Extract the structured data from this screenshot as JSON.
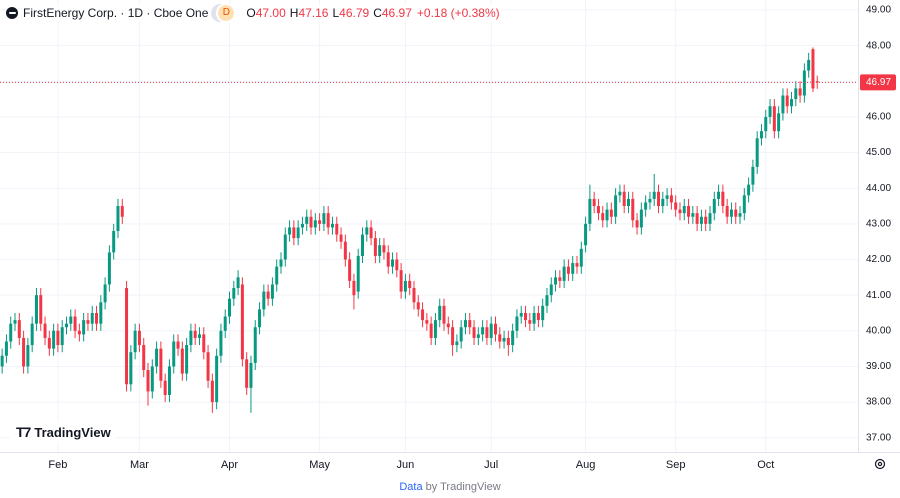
{
  "header": {
    "symbol": "FirstEnergy Corp. · 1D · Cboe One",
    "badge": "D",
    "legend": [
      {
        "key": "O",
        "value": "47.00"
      },
      {
        "key": "H",
        "value": "47.16"
      },
      {
        "key": "L",
        "value": "46.79"
      },
      {
        "key": "C",
        "value": "46.97"
      }
    ],
    "change": "+0.18 (+0.38%)"
  },
  "logo": "TradingView",
  "footer": {
    "link": "Data",
    "text": "by TradingView"
  },
  "chart_data": {
    "type": "candlestick",
    "up_color": "#089981",
    "down_color": "#f23645",
    "grid": true,
    "xlim": [
      -0.5,
      199.5
    ],
    "ylim": [
      36.6,
      49.28
    ],
    "yticks": [
      {
        "value": 37,
        "label": "37.00"
      },
      {
        "value": 38,
        "label": "38.00"
      },
      {
        "value": 39,
        "label": "39.00"
      },
      {
        "value": 40,
        "label": "40.00"
      },
      {
        "value": 41,
        "label": "41.00"
      },
      {
        "value": 42,
        "label": "42.00"
      },
      {
        "value": 43,
        "label": "43.00"
      },
      {
        "value": 44,
        "label": "44.00"
      },
      {
        "value": 45,
        "label": "45.00"
      },
      {
        "value": 46,
        "label": "46.00"
      },
      {
        "value": 47,
        "label": "47.00"
      },
      {
        "value": 48,
        "label": "48.00"
      },
      {
        "value": 49,
        "label": "49.00"
      }
    ],
    "xticks": [
      {
        "value": 13,
        "label": "Feb"
      },
      {
        "value": 32,
        "label": "Mar"
      },
      {
        "value": 53,
        "label": "Apr"
      },
      {
        "value": 74,
        "label": "May"
      },
      {
        "value": 94,
        "label": "Jun"
      },
      {
        "value": 114,
        "label": "Jul"
      },
      {
        "value": 136,
        "label": "Aug"
      },
      {
        "value": 157,
        "label": "Sep"
      },
      {
        "value": 178,
        "label": "Oct"
      }
    ],
    "last_price": 46.97,
    "open": [
      39.0,
      39.3,
      39.7,
      40.2,
      40.3,
      39.8,
      39.0,
      39.6,
      40.2,
      41.0,
      40.2,
      39.8,
      39.5,
      40.0,
      39.6,
      40.1,
      40.2,
      40.4,
      40.0,
      39.9,
      40.3,
      40.2,
      40.5,
      40.2,
      40.8,
      41.3,
      42.2,
      42.8,
      43.5,
      41.2,
      38.5,
      39.4,
      40.0,
      39.6,
      38.9,
      38.3,
      39.0,
      39.5,
      38.6,
      38.2,
      39.0,
      39.7,
      39.5,
      38.8,
      39.6,
      40.0,
      39.8,
      39.9,
      39.4,
      38.6,
      38.0,
      39.3,
      40.0,
      40.4,
      40.9,
      41.2,
      41.3,
      39.2,
      38.4,
      39.1,
      40.1,
      40.6,
      41.1,
      40.9,
      41.3,
      41.8,
      42.0,
      42.7,
      42.9,
      42.6,
      42.9,
      43.0,
      43.2,
      42.9,
      43.1,
      43.0,
      43.3,
      42.9,
      43.0,
      42.7,
      42.5,
      42.0,
      41.4,
      41.1,
      42.1,
      42.7,
      42.9,
      42.6,
      42.1,
      42.4,
      42.2,
      41.8,
      42.0,
      41.7,
      41.1,
      41.4,
      41.2,
      40.8,
      40.6,
      40.3,
      40.2,
      39.8,
      40.3,
      40.7,
      40.2,
      40.1,
      39.6,
      39.7,
      40.1,
      40.3,
      40.1,
      39.8,
      39.9,
      40.1,
      39.8,
      40.2,
      39.9,
      39.7,
      39.8,
      39.6,
      40.0,
      40.4,
      40.5,
      40.3,
      40.2,
      40.5,
      40.3,
      40.7,
      41.0,
      41.3,
      41.5,
      41.4,
      41.8,
      41.6,
      41.9,
      41.8,
      42.4,
      43.0,
      43.7,
      43.5,
      43.3,
      43.1,
      43.4,
      43.2,
      43.8,
      43.9,
      43.5,
      43.7,
      43.1,
      42.9,
      43.4,
      43.6,
      43.7,
      43.9,
      43.5,
      43.7,
      43.8,
      43.6,
      43.4,
      43.3,
      43.5,
      43.2,
      43.3,
      43.0,
      43.2,
      43.0,
      43.3,
      43.7,
      43.9,
      43.5,
      43.2,
      43.4,
      43.2,
      43.3,
      43.8,
      44.1,
      44.6,
      45.4,
      45.6,
      46.0,
      46.3,
      45.6,
      46.1,
      46.6,
      46.3,
      46.5,
      46.8,
      46.6,
      47.3,
      47.9,
      47.0
    ],
    "high": [
      39.5,
      39.9,
      40.4,
      40.5,
      40.5,
      40.0,
      39.8,
      40.4,
      41.2,
      41.2,
      40.4,
      40.0,
      40.2,
      40.2,
      40.3,
      40.4,
      40.6,
      40.6,
      40.2,
      40.5,
      40.5,
      40.7,
      40.7,
      41.0,
      41.5,
      42.4,
      43.0,
      43.7,
      43.7,
      41.4,
      39.6,
      40.2,
      40.2,
      39.8,
      39.1,
      39.2,
      39.7,
      39.7,
      38.8,
      39.2,
      39.9,
      39.9,
      39.7,
      39.8,
      40.2,
      40.2,
      40.1,
      40.1,
      39.6,
      38.8,
      39.5,
      40.2,
      40.6,
      41.1,
      41.4,
      41.7,
      41.5,
      39.4,
      39.3,
      40.3,
      40.8,
      41.3,
      41.3,
      41.5,
      42.0,
      42.2,
      42.9,
      43.1,
      43.1,
      43.1,
      43.2,
      43.4,
      43.4,
      43.3,
      43.3,
      43.5,
      43.5,
      43.2,
      43.2,
      42.9,
      42.7,
      42.2,
      41.6,
      42.3,
      42.9,
      43.1,
      43.1,
      42.8,
      42.6,
      42.6,
      42.4,
      42.2,
      42.2,
      41.9,
      41.6,
      41.6,
      41.4,
      41.0,
      40.8,
      40.5,
      40.4,
      40.5,
      40.9,
      40.9,
      40.4,
      40.3,
      39.9,
      40.3,
      40.5,
      40.5,
      40.3,
      40.1,
      40.3,
      40.3,
      40.4,
      40.4,
      40.1,
      40.0,
      40.0,
      40.2,
      40.6,
      40.7,
      40.7,
      40.5,
      40.7,
      40.7,
      40.9,
      41.2,
      41.5,
      41.7,
      41.7,
      42.0,
      42.0,
      42.1,
      42.1,
      42.5,
      43.2,
      44.1,
      43.9,
      43.7,
      43.5,
      43.6,
      43.6,
      44.0,
      44.1,
      44.1,
      43.9,
      43.9,
      43.3,
      43.6,
      43.8,
      43.9,
      44.4,
      44.1,
      43.9,
      44.0,
      44.0,
      43.8,
      43.6,
      43.7,
      43.7,
      43.5,
      43.5,
      43.4,
      43.4,
      43.5,
      43.9,
      44.1,
      44.1,
      43.7,
      43.6,
      43.6,
      43.5,
      44.0,
      44.3,
      44.8,
      45.6,
      45.8,
      46.2,
      46.5,
      46.5,
      46.3,
      46.8,
      46.8,
      46.7,
      47.0,
      47.0,
      47.5,
      47.8,
      47.95,
      47.16
    ],
    "low": [
      38.8,
      39.1,
      39.5,
      40.0,
      39.6,
      38.8,
      38.8,
      39.4,
      40.0,
      40.0,
      39.6,
      39.3,
      39.3,
      39.4,
      39.4,
      39.9,
      40.0,
      39.8,
      39.7,
      39.7,
      40.0,
      40.0,
      40.0,
      40.0,
      40.6,
      41.1,
      42.0,
      42.6,
      43.0,
      38.3,
      38.3,
      39.2,
      39.4,
      38.7,
      37.9,
      38.1,
      38.8,
      38.4,
      38.0,
      38.0,
      38.8,
      39.3,
      38.6,
      38.6,
      39.4,
      39.6,
      39.6,
      39.2,
      38.4,
      37.7,
      37.8,
      39.1,
      39.8,
      40.2,
      40.7,
      41.0,
      39.0,
      38.2,
      37.7,
      38.9,
      39.9,
      40.4,
      40.7,
      40.7,
      41.1,
      41.6,
      41.8,
      42.5,
      42.4,
      42.4,
      42.7,
      42.8,
      42.7,
      42.7,
      42.8,
      42.8,
      42.7,
      42.7,
      42.5,
      42.3,
      41.8,
      41.2,
      40.6,
      40.9,
      41.9,
      42.5,
      42.4,
      41.9,
      41.9,
      42.0,
      41.6,
      41.6,
      41.5,
      40.9,
      40.9,
      41.0,
      40.6,
      40.4,
      40.1,
      40.0,
      39.6,
      39.6,
      40.1,
      40.0,
      39.9,
      39.3,
      39.4,
      39.5,
      39.9,
      39.9,
      39.6,
      39.6,
      39.7,
      39.6,
      39.6,
      39.7,
      39.5,
      39.5,
      39.3,
      39.4,
      39.8,
      40.2,
      40.1,
      40.0,
      40.0,
      40.1,
      40.1,
      40.5,
      40.8,
      41.1,
      41.2,
      41.2,
      41.4,
      41.4,
      41.6,
      41.6,
      42.2,
      42.8,
      43.3,
      43.1,
      42.9,
      42.9,
      43.0,
      43.0,
      43.6,
      43.3,
      43.3,
      42.9,
      42.7,
      42.7,
      43.2,
      43.4,
      43.5,
      43.3,
      43.3,
      43.5,
      43.4,
      43.2,
      43.1,
      43.1,
      43.0,
      43.0,
      42.8,
      42.8,
      42.8,
      42.8,
      43.1,
      43.5,
      43.3,
      43.0,
      43.0,
      43.0,
      43.0,
      43.1,
      43.6,
      43.9,
      44.4,
      45.2,
      45.4,
      45.8,
      45.4,
      45.4,
      45.9,
      46.1,
      46.1,
      46.3,
      46.4,
      46.4,
      47.1,
      46.7,
      46.79
    ],
    "close": [
      39.3,
      39.7,
      40.2,
      40.3,
      39.8,
      39.0,
      39.6,
      40.2,
      41.0,
      40.2,
      39.8,
      39.5,
      40.0,
      39.6,
      40.1,
      40.2,
      40.4,
      40.0,
      39.9,
      40.3,
      40.2,
      40.5,
      40.2,
      40.8,
      41.3,
      42.2,
      42.8,
      43.5,
      43.2,
      38.5,
      39.4,
      40.0,
      39.6,
      38.9,
      38.3,
      39.0,
      39.5,
      38.6,
      38.2,
      39.0,
      39.7,
      39.5,
      38.8,
      39.6,
      40.0,
      39.8,
      39.9,
      39.4,
      38.6,
      38.0,
      39.3,
      40.0,
      40.4,
      40.9,
      41.2,
      41.5,
      39.2,
      38.4,
      39.1,
      40.1,
      40.6,
      41.1,
      40.9,
      41.3,
      41.8,
      42.0,
      42.7,
      42.9,
      42.6,
      42.9,
      43.0,
      43.2,
      42.9,
      43.1,
      43.0,
      43.3,
      42.9,
      43.0,
      42.7,
      42.5,
      42.0,
      41.4,
      41.0,
      42.1,
      42.7,
      42.9,
      42.6,
      42.1,
      42.4,
      42.2,
      41.8,
      42.0,
      41.7,
      41.1,
      41.4,
      41.2,
      40.8,
      40.6,
      40.3,
      40.2,
      39.8,
      40.3,
      40.7,
      40.2,
      40.1,
      39.6,
      39.7,
      40.1,
      40.3,
      40.1,
      39.8,
      39.9,
      40.1,
      39.8,
      40.2,
      39.9,
      39.7,
      39.8,
      39.6,
      40.0,
      40.4,
      40.5,
      40.3,
      40.2,
      40.5,
      40.3,
      40.7,
      41.0,
      41.3,
      41.5,
      41.4,
      41.8,
      41.6,
      41.9,
      41.8,
      42.3,
      43.0,
      43.7,
      43.5,
      43.3,
      43.1,
      43.4,
      43.2,
      43.8,
      43.9,
      43.5,
      43.7,
      43.1,
      42.9,
      43.4,
      43.6,
      43.7,
      43.9,
      43.5,
      43.7,
      43.8,
      43.6,
      43.4,
      43.3,
      43.5,
      43.2,
      43.3,
      43.0,
      43.2,
      43.0,
      43.3,
      43.7,
      43.9,
      43.5,
      43.2,
      43.4,
      43.2,
      43.3,
      43.8,
      44.1,
      44.6,
      45.4,
      45.6,
      46.0,
      46.3,
      45.6,
      46.1,
      46.6,
      46.3,
      46.5,
      46.8,
      46.6,
      47.3,
      47.6,
      46.8,
      46.97
    ]
  }
}
